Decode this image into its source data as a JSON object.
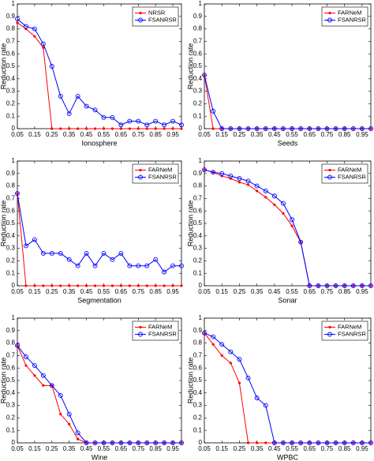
{
  "chart_data": [
    {
      "type": "line",
      "xlabel": "Ionosphere",
      "ylabel": "Reduction rate",
      "legend": "upper right",
      "x": [
        0.05,
        0.1,
        0.15,
        0.2,
        0.25,
        0.3,
        0.35,
        0.4,
        0.45,
        0.5,
        0.55,
        0.6,
        0.65,
        0.7,
        0.75,
        0.8,
        0.85,
        0.9,
        0.95,
        1
      ],
      "series": [
        {
          "name": "NRSR",
          "color": "#ff0000",
          "marker": "star",
          "values": [
            0.85,
            0.8,
            0.74,
            0.65,
            0,
            0,
            0,
            0,
            0,
            0,
            0,
            0,
            0,
            0,
            0,
            0,
            0,
            0,
            0,
            0
          ]
        },
        {
          "name": "FSANRSR",
          "color": "#0000ff",
          "marker": "circle",
          "values": [
            0.88,
            0.82,
            0.8,
            0.68,
            0.5,
            0.26,
            0.12,
            0.26,
            0.18,
            0.15,
            0.09,
            0.09,
            0.03,
            0.06,
            0.06,
            0.03,
            0.06,
            0.03,
            0.06,
            0.03
          ]
        }
      ],
      "xlim": [
        0.05,
        1
      ],
      "ylim": [
        0,
        1
      ],
      "xticks": [
        0.05,
        0.15,
        0.25,
        0.35,
        0.45,
        0.55,
        0.65,
        0.75,
        0.85,
        0.95
      ],
      "yticks": [
        0,
        0.1,
        0.2,
        0.3,
        0.4,
        0.5,
        0.6,
        0.7,
        0.8,
        0.9,
        1
      ]
    },
    {
      "type": "line",
      "xlabel": "Seeds",
      "ylabel": "Reduction rate",
      "legend": "upper right",
      "x": [
        0.05,
        0.1,
        0.15,
        0.2,
        0.25,
        0.3,
        0.35,
        0.4,
        0.45,
        0.5,
        0.55,
        0.6,
        0.65,
        0.7,
        0.75,
        0.8,
        0.85,
        0.9,
        0.95,
        1
      ],
      "series": [
        {
          "name": "FARNeM",
          "color": "#ff0000",
          "marker": "star",
          "values": [
            0.43,
            0,
            0,
            0,
            0,
            0,
            0,
            0,
            0,
            0,
            0,
            0,
            0,
            0,
            0,
            0,
            0,
            0,
            0,
            0
          ]
        },
        {
          "name": "FSANRSR",
          "color": "#0000ff",
          "marker": "circle",
          "values": [
            0.43,
            0.14,
            0,
            0,
            0,
            0,
            0,
            0,
            0,
            0,
            0,
            0,
            0,
            0,
            0,
            0,
            0,
            0,
            0,
            0
          ]
        }
      ],
      "xlim": [
        0.05,
        1
      ],
      "ylim": [
        0,
        1
      ],
      "xticks": [
        0.05,
        0.15,
        0.25,
        0.35,
        0.45,
        0.55,
        0.65,
        0.75,
        0.85,
        0.95
      ],
      "yticks": [
        0,
        0.1,
        0.2,
        0.3,
        0.4,
        0.5,
        0.6,
        0.7,
        0.8,
        0.9,
        1
      ]
    },
    {
      "type": "line",
      "xlabel": "Segmentation",
      "ylabel": "Reduction rate",
      "legend": "upper right",
      "x": [
        0.05,
        0.1,
        0.15,
        0.2,
        0.25,
        0.3,
        0.35,
        0.4,
        0.45,
        0.5,
        0.55,
        0.6,
        0.65,
        0.7,
        0.75,
        0.8,
        0.85,
        0.9,
        0.95,
        1
      ],
      "series": [
        {
          "name": "FARNeM",
          "color": "#ff0000",
          "marker": "star",
          "values": [
            0.74,
            0,
            0,
            0,
            0,
            0,
            0,
            0,
            0,
            0,
            0,
            0,
            0,
            0,
            0,
            0,
            0,
            0,
            0,
            0
          ]
        },
        {
          "name": "FSANRSR",
          "color": "#0000ff",
          "marker": "circle",
          "values": [
            0.74,
            0.32,
            0.37,
            0.26,
            0.26,
            0.26,
            0.21,
            0.16,
            0.26,
            0.16,
            0.26,
            0.21,
            0.26,
            0.16,
            0.16,
            0.16,
            0.21,
            0.11,
            0.16,
            0.16
          ]
        }
      ],
      "xlim": [
        0.05,
        1
      ],
      "ylim": [
        0,
        1
      ],
      "xticks": [
        0.05,
        0.15,
        0.25,
        0.35,
        0.45,
        0.55,
        0.65,
        0.75,
        0.85,
        0.95
      ],
      "yticks": [
        0,
        0.1,
        0.2,
        0.3,
        0.4,
        0.5,
        0.6,
        0.7,
        0.8,
        0.9,
        1
      ]
    },
    {
      "type": "line",
      "xlabel": "Sonar",
      "ylabel": "Reduction rate",
      "legend": "upper right",
      "x": [
        0.05,
        0.1,
        0.15,
        0.2,
        0.25,
        0.3,
        0.35,
        0.4,
        0.45,
        0.5,
        0.55,
        0.6,
        0.65,
        0.7,
        0.75,
        0.8,
        0.85,
        0.9,
        0.95,
        1
      ],
      "series": [
        {
          "name": "FARNeM",
          "color": "#ff0000",
          "marker": "star",
          "values": [
            0.93,
            0.91,
            0.88,
            0.86,
            0.83,
            0.81,
            0.76,
            0.71,
            0.65,
            0.58,
            0.48,
            0.35,
            0,
            0,
            0,
            0,
            0,
            0,
            0,
            0
          ]
        },
        {
          "name": "FSANRSR",
          "color": "#0000ff",
          "marker": "circle",
          "values": [
            0.93,
            0.91,
            0.9,
            0.88,
            0.86,
            0.84,
            0.8,
            0.76,
            0.72,
            0.66,
            0.53,
            0.35,
            0,
            0,
            0,
            0,
            0,
            0,
            0,
            0
          ]
        }
      ],
      "xlim": [
        0.05,
        1
      ],
      "ylim": [
        0,
        1
      ],
      "xticks": [
        0.05,
        0.15,
        0.25,
        0.35,
        0.45,
        0.55,
        0.65,
        0.75,
        0.85,
        0.95
      ],
      "yticks": [
        0,
        0.1,
        0.2,
        0.3,
        0.4,
        0.5,
        0.6,
        0.7,
        0.8,
        0.9,
        1
      ]
    },
    {
      "type": "line",
      "xlabel": "Wine",
      "ylabel": "Reduction rate",
      "legend": "upper right",
      "x": [
        0.05,
        0.1,
        0.15,
        0.2,
        0.25,
        0.3,
        0.35,
        0.4,
        0.45,
        0.5,
        0.55,
        0.6,
        0.65,
        0.7,
        0.75,
        0.8,
        0.85,
        0.9,
        0.95,
        1
      ],
      "series": [
        {
          "name": "FARNeM",
          "color": "#ff0000",
          "marker": "star",
          "values": [
            0.78,
            0.62,
            0.54,
            0.46,
            0.46,
            0.23,
            0.15,
            0.03,
            0,
            0,
            0,
            0,
            0,
            0,
            0,
            0,
            0,
            0,
            0,
            0
          ]
        },
        {
          "name": "FSANRSR",
          "color": "#0000ff",
          "marker": "circle",
          "values": [
            0.78,
            0.69,
            0.62,
            0.54,
            0.46,
            0.38,
            0.23,
            0.08,
            0,
            0,
            0,
            0,
            0,
            0,
            0,
            0,
            0,
            0,
            0,
            0
          ]
        }
      ],
      "xlim": [
        0.05,
        1
      ],
      "ylim": [
        0,
        1
      ],
      "xticks": [
        0.05,
        0.15,
        0.25,
        0.35,
        0.45,
        0.55,
        0.65,
        0.75,
        0.85,
        0.95
      ],
      "yticks": [
        0,
        0.1,
        0.2,
        0.3,
        0.4,
        0.5,
        0.6,
        0.7,
        0.8,
        0.9,
        1
      ]
    },
    {
      "type": "line",
      "xlabel": "WPBC",
      "ylabel": "Reduction rate",
      "legend": "upper right",
      "x": [
        0.05,
        0.1,
        0.15,
        0.2,
        0.25,
        0.3,
        0.35,
        0.4,
        0.45,
        0.5,
        0.55,
        0.6,
        0.65,
        0.7,
        0.75,
        0.8,
        0.85,
        0.9,
        0.95,
        1
      ],
      "series": [
        {
          "name": "FARNeM",
          "color": "#ff0000",
          "marker": "star",
          "values": [
            0.88,
            0.79,
            0.7,
            0.64,
            0.48,
            0,
            0,
            0,
            0,
            0,
            0,
            0,
            0,
            0,
            0,
            0,
            0,
            0,
            0,
            0
          ]
        },
        {
          "name": "FSANRSR",
          "color": "#0000ff",
          "marker": "circle",
          "values": [
            0.88,
            0.85,
            0.79,
            0.73,
            0.67,
            0.52,
            0.36,
            0.3,
            0,
            0,
            0,
            0,
            0,
            0,
            0,
            0,
            0,
            0,
            0,
            0
          ]
        }
      ],
      "xlim": [
        0.05,
        1
      ],
      "ylim": [
        0,
        1
      ],
      "xticks": [
        0.05,
        0.15,
        0.25,
        0.35,
        0.45,
        0.55,
        0.65,
        0.75,
        0.85,
        0.95
      ],
      "yticks": [
        0,
        0.1,
        0.2,
        0.3,
        0.4,
        0.5,
        0.6,
        0.7,
        0.8,
        0.9,
        1
      ]
    }
  ]
}
